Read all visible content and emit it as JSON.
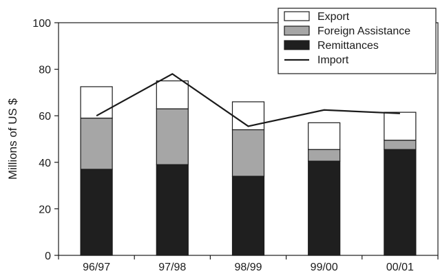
{
  "chart_data": {
    "type": "bar",
    "stacked": true,
    "categories": [
      "96/97",
      "97/98",
      "98/99",
      "99/00",
      "00/01"
    ],
    "series": [
      {
        "name": "Remittances",
        "kind": "bar",
        "color": "#1f1f1f",
        "values": [
          37,
          39,
          34,
          40.5,
          45.5
        ]
      },
      {
        "name": "Foreign Assistance",
        "kind": "bar",
        "color": "#a6a6a6",
        "values": [
          22,
          24,
          20,
          5,
          4
        ]
      },
      {
        "name": "Export",
        "kind": "bar",
        "color": "#ffffff",
        "values": [
          13.5,
          12,
          12,
          11.5,
          12
        ]
      },
      {
        "name": "Import",
        "kind": "line",
        "color": "#1a1a1a",
        "values": [
          60,
          78,
          55.5,
          62.5,
          61
        ]
      }
    ],
    "legend_order": [
      "Export",
      "Foreign Assistance",
      "Remittances",
      "Import"
    ],
    "title": "",
    "xlabel": "",
    "ylabel": "Millions of US $",
    "ylim": [
      0,
      100
    ],
    "yticks": [
      0,
      20,
      40,
      60,
      80,
      100
    ],
    "grid": false,
    "legend_position": "top-right"
  }
}
